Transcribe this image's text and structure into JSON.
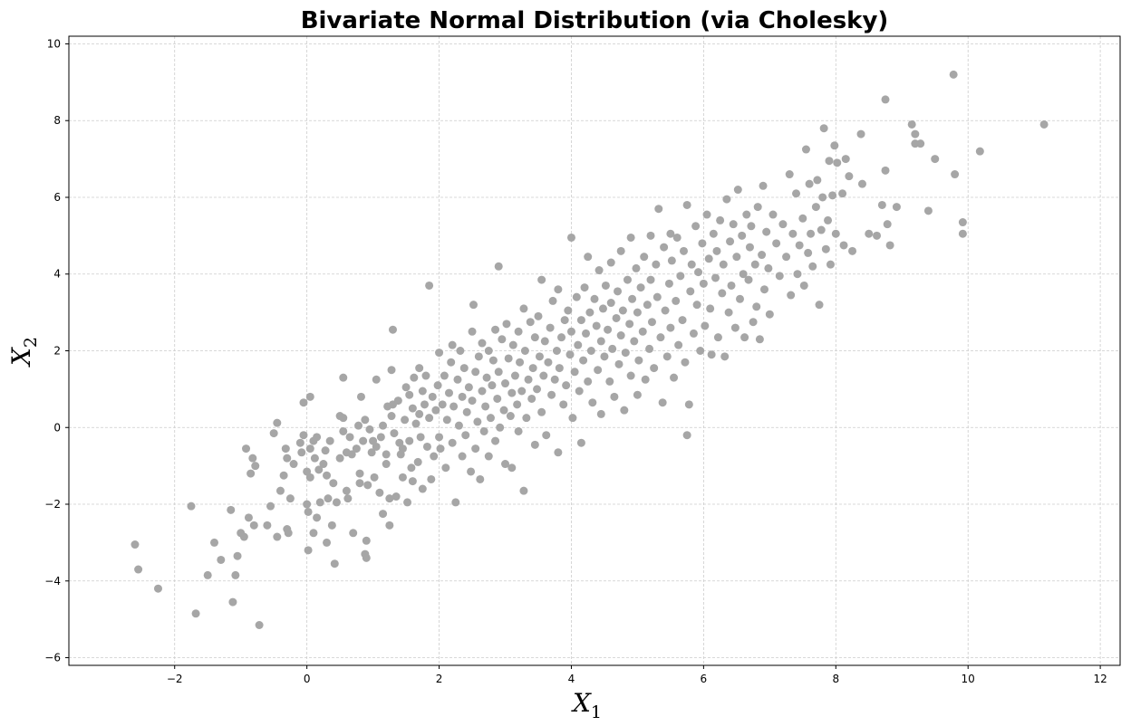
{
  "chart_data": {
    "type": "scatter",
    "title": "Bivariate Normal Distribution (via Cholesky)",
    "xlabel": {
      "base": "X",
      "sub": "1"
    },
    "ylabel": {
      "base": "X",
      "sub": "2"
    },
    "xlim": [
      -3.6,
      12.3
    ],
    "ylim": [
      -6.2,
      10.2
    ],
    "xticks": [
      -2,
      0,
      2,
      4,
      6,
      8,
      10,
      12
    ],
    "yticks": [
      -6,
      -4,
      -2,
      0,
      2,
      4,
      6,
      8,
      10
    ],
    "grid": true,
    "marker_color": "#a6a6a6",
    "points": [
      [
        -2.6,
        -3.05
      ],
      [
        -2.55,
        -3.7
      ],
      [
        -2.25,
        -4.2
      ],
      [
        -1.75,
        -2.05
      ],
      [
        -1.68,
        -4.85
      ],
      [
        -1.5,
        -3.85
      ],
      [
        -1.4,
        -3.0
      ],
      [
        -1.3,
        -3.45
      ],
      [
        -1.15,
        -2.15
      ],
      [
        -1.12,
        -4.55
      ],
      [
        -1.08,
        -3.85
      ],
      [
        -1.05,
        -3.35
      ],
      [
        -1.0,
        -2.75
      ],
      [
        -0.95,
        -2.85
      ],
      [
        -0.92,
        -0.55
      ],
      [
        -0.88,
        -2.35
      ],
      [
        -0.85,
        -1.2
      ],
      [
        -0.82,
        -0.8
      ],
      [
        -0.78,
        -1.0
      ],
      [
        -0.8,
        -2.55
      ],
      [
        -0.72,
        -5.15
      ],
      [
        -0.6,
        -2.55
      ],
      [
        -0.55,
        -2.05
      ],
      [
        -0.5,
        -0.15
      ],
      [
        -0.45,
        0.12
      ],
      [
        -0.45,
        -2.85
      ],
      [
        -0.4,
        -1.65
      ],
      [
        -0.35,
        -1.25
      ],
      [
        -0.32,
        -0.55
      ],
      [
        -0.3,
        -0.8
      ],
      [
        -0.3,
        -2.65
      ],
      [
        -0.28,
        -2.75
      ],
      [
        -0.25,
        -1.85
      ],
      [
        -0.2,
        -0.95
      ],
      [
        -0.1,
        -0.4
      ],
      [
        -0.08,
        -0.65
      ],
      [
        -0.05,
        0.65
      ],
      [
        -0.05,
        -0.2
      ],
      [
        0.0,
        -1.15
      ],
      [
        0.0,
        -2.0
      ],
      [
        0.02,
        -2.2
      ],
      [
        0.05,
        0.8
      ],
      [
        0.05,
        -0.55
      ],
      [
        0.05,
        -1.3
      ],
      [
        0.02,
        -3.2
      ],
      [
        0.1,
        -0.35
      ],
      [
        0.12,
        -0.8
      ],
      [
        0.1,
        -2.75
      ],
      [
        0.15,
        -0.25
      ],
      [
        0.18,
        -1.1
      ],
      [
        0.2,
        -1.95
      ],
      [
        0.15,
        -2.35
      ],
      [
        0.25,
        -0.95
      ],
      [
        0.28,
        -0.6
      ],
      [
        0.3,
        -1.25
      ],
      [
        0.3,
        -3.0
      ],
      [
        0.32,
        -1.85
      ],
      [
        0.35,
        -0.35
      ],
      [
        0.38,
        -2.55
      ],
      [
        0.4,
        -1.45
      ],
      [
        0.42,
        -3.55
      ],
      [
        0.45,
        -1.95
      ],
      [
        0.5,
        -0.8
      ],
      [
        0.5,
        0.3
      ],
      [
        0.55,
        0.25
      ],
      [
        0.55,
        -0.1
      ],
      [
        0.55,
        1.3
      ],
      [
        0.6,
        -0.65
      ],
      [
        0.6,
        -1.65
      ],
      [
        0.62,
        -1.85
      ],
      [
        0.65,
        -0.25
      ],
      [
        0.68,
        -0.7
      ],
      [
        0.7,
        -2.75
      ],
      [
        0.75,
        -0.55
      ],
      [
        0.78,
        0.05
      ],
      [
        0.8,
        -1.2
      ],
      [
        0.8,
        -1.45
      ],
      [
        0.82,
        0.8
      ],
      [
        0.85,
        -0.35
      ],
      [
        0.88,
        0.2
      ],
      [
        0.88,
        -3.3
      ],
      [
        0.9,
        -3.4
      ],
      [
        0.9,
        -2.95
      ],
      [
        0.92,
        -1.5
      ],
      [
        0.95,
        -0.05
      ],
      [
        0.98,
        -0.65
      ],
      [
        1.0,
        -0.35
      ],
      [
        1.02,
        -1.3
      ],
      [
        1.05,
        -0.5
      ],
      [
        1.05,
        1.25
      ],
      [
        1.1,
        -1.7
      ],
      [
        1.12,
        -0.25
      ],
      [
        1.15,
        -2.25
      ],
      [
        1.15,
        0.05
      ],
      [
        1.2,
        -0.7
      ],
      [
        1.2,
        -0.95
      ],
      [
        1.22,
        0.55
      ],
      [
        1.25,
        -1.85
      ],
      [
        1.25,
        -2.55
      ],
      [
        1.28,
        0.3
      ],
      [
        1.28,
        1.5
      ],
      [
        1.3,
        0.6
      ],
      [
        1.3,
        2.55
      ],
      [
        1.32,
        -0.15
      ],
      [
        1.35,
        -1.8
      ],
      [
        1.38,
        0.7
      ],
      [
        1.4,
        -0.4
      ],
      [
        1.42,
        -0.7
      ],
      [
        1.45,
        -0.55
      ],
      [
        1.45,
        -1.3
      ],
      [
        1.48,
        0.2
      ],
      [
        1.5,
        1.05
      ],
      [
        1.52,
        -1.95
      ],
      [
        1.55,
        -0.35
      ],
      [
        1.55,
        0.85
      ],
      [
        1.58,
        -1.05
      ],
      [
        1.6,
        0.5
      ],
      [
        1.6,
        -1.4
      ],
      [
        1.62,
        1.3
      ],
      [
        1.65,
        0.1
      ],
      [
        1.68,
        -0.9
      ],
      [
        1.7,
        0.35
      ],
      [
        1.7,
        1.55
      ],
      [
        1.72,
        -0.25
      ],
      [
        1.75,
        0.95
      ],
      [
        1.75,
        -1.6
      ],
      [
        1.78,
        0.6
      ],
      [
        1.8,
        1.35
      ],
      [
        1.82,
        -0.5
      ],
      [
        1.85,
        0.25
      ],
      [
        1.85,
        3.7
      ],
      [
        1.88,
        -1.35
      ],
      [
        1.9,
        0.8
      ],
      [
        1.92,
        -0.75
      ],
      [
        1.95,
        0.45
      ],
      [
        1.98,
        1.1
      ],
      [
        2.0,
        -0.25
      ],
      [
        2.0,
        1.95
      ],
      [
        2.02,
        -0.55
      ],
      [
        2.05,
        0.6
      ],
      [
        2.08,
        1.35
      ],
      [
        2.1,
        -1.05
      ],
      [
        2.12,
        0.2
      ],
      [
        2.15,
        0.9
      ],
      [
        2.18,
        1.7
      ],
      [
        2.2,
        -0.4
      ],
      [
        2.2,
        2.15
      ],
      [
        2.22,
        0.55
      ],
      [
        2.25,
        -1.95
      ],
      [
        2.28,
        1.25
      ],
      [
        2.3,
        0.05
      ],
      [
        2.32,
        2.0
      ],
      [
        2.35,
        -0.75
      ],
      [
        2.35,
        0.8
      ],
      [
        2.38,
        1.55
      ],
      [
        2.4,
        -0.2
      ],
      [
        2.42,
        0.4
      ],
      [
        2.45,
        1.05
      ],
      [
        2.48,
        -1.15
      ],
      [
        2.5,
        2.5
      ],
      [
        2.5,
        0.7
      ],
      [
        2.52,
        3.2
      ],
      [
        2.55,
        -0.55
      ],
      [
        2.55,
        1.45
      ],
      [
        2.58,
        0.15
      ],
      [
        2.6,
        1.85
      ],
      [
        2.62,
        -1.35
      ],
      [
        2.65,
        0.95
      ],
      [
        2.65,
        2.2
      ],
      [
        2.68,
        -0.1
      ],
      [
        2.7,
        0.55
      ],
      [
        2.72,
        1.3
      ],
      [
        2.75,
        -0.75
      ],
      [
        2.75,
        2.0
      ],
      [
        2.78,
        0.25
      ],
      [
        2.8,
        1.1
      ],
      [
        2.82,
        1.75
      ],
      [
        2.85,
        -0.35
      ],
      [
        2.85,
        2.55
      ],
      [
        2.88,
        0.75
      ],
      [
        2.9,
        4.2
      ],
      [
        2.9,
        1.45
      ],
      [
        2.92,
        0.0
      ],
      [
        2.95,
        2.3
      ],
      [
        2.98,
        0.45
      ],
      [
        3.0,
        1.15
      ],
      [
        3.0,
        -0.95
      ],
      [
        3.02,
        2.7
      ],
      [
        3.05,
        1.8
      ],
      [
        3.08,
        0.3
      ],
      [
        3.1,
        0.9
      ],
      [
        3.1,
        -1.05
      ],
      [
        3.12,
        2.15
      ],
      [
        3.15,
        1.35
      ],
      [
        3.18,
        0.6
      ],
      [
        3.2,
        2.5
      ],
      [
        3.2,
        -0.1
      ],
      [
        3.22,
        1.7
      ],
      [
        3.25,
        0.95
      ],
      [
        3.28,
        3.1
      ],
      [
        3.28,
        -1.65
      ],
      [
        3.3,
        2.0
      ],
      [
        3.32,
        0.25
      ],
      [
        3.35,
        1.25
      ],
      [
        3.38,
        2.75
      ],
      [
        3.4,
        0.75
      ],
      [
        3.42,
        1.55
      ],
      [
        3.45,
        2.35
      ],
      [
        3.45,
        -0.45
      ],
      [
        3.48,
        1.0
      ],
      [
        3.5,
        2.9
      ],
      [
        3.52,
        1.85
      ],
      [
        3.55,
        0.4
      ],
      [
        3.55,
        3.85
      ],
      [
        3.58,
        1.35
      ],
      [
        3.6,
        2.25
      ],
      [
        3.62,
        -0.2
      ],
      [
        3.65,
        1.7
      ],
      [
        3.68,
        2.6
      ],
      [
        3.7,
        0.85
      ],
      [
        3.72,
        3.3
      ],
      [
        3.75,
        1.25
      ],
      [
        3.78,
        2.0
      ],
      [
        3.8,
        -0.65
      ],
      [
        3.8,
        3.6
      ],
      [
        3.82,
        1.55
      ],
      [
        3.85,
        2.35
      ],
      [
        3.88,
        0.6
      ],
      [
        3.9,
        2.8
      ],
      [
        3.92,
        1.1
      ],
      [
        3.95,
        3.05
      ],
      [
        3.98,
        1.9
      ],
      [
        4.0,
        4.95
      ],
      [
        4.0,
        2.5
      ],
      [
        4.02,
        0.25
      ],
      [
        4.05,
        1.45
      ],
      [
        4.08,
        3.4
      ],
      [
        4.1,
        2.15
      ],
      [
        4.12,
        0.95
      ],
      [
        4.15,
        2.8
      ],
      [
        4.15,
        -0.4
      ],
      [
        4.18,
        1.75
      ],
      [
        4.2,
        3.65
      ],
      [
        4.22,
        2.45
      ],
      [
        4.25,
        4.45
      ],
      [
        4.25,
        1.2
      ],
      [
        4.28,
        3.0
      ],
      [
        4.3,
        2.0
      ],
      [
        4.32,
        0.65
      ],
      [
        4.35,
        3.35
      ],
      [
        4.38,
        2.65
      ],
      [
        4.4,
        1.5
      ],
      [
        4.42,
        4.1
      ],
      [
        4.45,
        2.25
      ],
      [
        4.45,
        0.35
      ],
      [
        4.48,
        3.1
      ],
      [
        4.5,
        1.85
      ],
      [
        4.52,
        3.7
      ],
      [
        4.55,
        2.55
      ],
      [
        4.58,
        1.2
      ],
      [
        4.6,
        4.3
      ],
      [
        4.6,
        3.25
      ],
      [
        4.62,
        2.05
      ],
      [
        4.65,
        0.8
      ],
      [
        4.68,
        2.85
      ],
      [
        4.7,
        3.55
      ],
      [
        4.72,
        1.65
      ],
      [
        4.75,
        4.6
      ],
      [
        4.75,
        2.4
      ],
      [
        4.78,
        3.05
      ],
      [
        4.8,
        0.45
      ],
      [
        4.82,
        1.95
      ],
      [
        4.85,
        3.85
      ],
      [
        4.88,
        2.7
      ],
      [
        4.9,
        4.95
      ],
      [
        4.9,
        1.35
      ],
      [
        4.92,
        3.35
      ],
      [
        4.95,
        2.25
      ],
      [
        4.98,
        4.15
      ],
      [
        5.0,
        3.0
      ],
      [
        5.0,
        0.85
      ],
      [
        5.02,
        1.75
      ],
      [
        5.05,
        3.65
      ],
      [
        5.08,
        2.5
      ],
      [
        5.1,
        4.45
      ],
      [
        5.12,
        1.25
      ],
      [
        5.15,
        3.2
      ],
      [
        5.18,
        2.05
      ],
      [
        5.2,
        5.0
      ],
      [
        5.2,
        3.85
      ],
      [
        5.22,
        2.75
      ],
      [
        5.25,
        1.55
      ],
      [
        5.28,
        4.25
      ],
      [
        5.3,
        3.4
      ],
      [
        5.32,
        5.7
      ],
      [
        5.35,
        2.35
      ],
      [
        5.38,
        0.65
      ],
      [
        5.4,
        4.7
      ],
      [
        5.42,
        3.05
      ],
      [
        5.45,
        1.85
      ],
      [
        5.48,
        3.75
      ],
      [
        5.5,
        5.05
      ],
      [
        5.5,
        2.6
      ],
      [
        5.52,
        4.35
      ],
      [
        5.55,
        1.3
      ],
      [
        5.58,
        3.3
      ],
      [
        5.6,
        4.95
      ],
      [
        5.62,
        2.15
      ],
      [
        5.65,
        3.95
      ],
      [
        5.68,
        2.8
      ],
      [
        5.7,
        4.6
      ],
      [
        5.72,
        1.7
      ],
      [
        5.75,
        5.8
      ],
      [
        5.75,
        -0.2
      ],
      [
        5.78,
        0.6
      ],
      [
        5.8,
        3.55
      ],
      [
        5.82,
        4.25
      ],
      [
        5.85,
        2.45
      ],
      [
        5.88,
        5.25
      ],
      [
        5.9,
        3.2
      ],
      [
        5.92,
        4.05
      ],
      [
        5.95,
        2.0
      ],
      [
        5.98,
        4.8
      ],
      [
        6.0,
        3.75
      ],
      [
        6.02,
        2.65
      ],
      [
        6.05,
        5.55
      ],
      [
        6.08,
        4.4
      ],
      [
        6.1,
        3.1
      ],
      [
        6.12,
        1.9
      ],
      [
        6.15,
        5.05
      ],
      [
        6.18,
        3.9
      ],
      [
        6.2,
        4.6
      ],
      [
        6.22,
        2.35
      ],
      [
        6.25,
        5.4
      ],
      [
        6.28,
        3.5
      ],
      [
        6.3,
        4.25
      ],
      [
        6.32,
        1.85
      ],
      [
        6.35,
        5.95
      ],
      [
        6.38,
        3.0
      ],
      [
        6.4,
        4.85
      ],
      [
        6.42,
        3.7
      ],
      [
        6.45,
        5.3
      ],
      [
        6.48,
        2.6
      ],
      [
        6.5,
        4.45
      ],
      [
        6.52,
        6.2
      ],
      [
        6.55,
        3.35
      ],
      [
        6.58,
        5.0
      ],
      [
        6.6,
        4.0
      ],
      [
        6.62,
        2.35
      ],
      [
        6.65,
        5.55
      ],
      [
        6.68,
        3.85
      ],
      [
        6.7,
        4.7
      ],
      [
        6.72,
        5.25
      ],
      [
        6.75,
        2.75
      ],
      [
        6.78,
        4.25
      ],
      [
        6.8,
        3.15
      ],
      [
        6.82,
        5.75
      ],
      [
        6.85,
        2.3
      ],
      [
        6.88,
        4.5
      ],
      [
        6.9,
        6.3
      ],
      [
        6.92,
        3.6
      ],
      [
        6.95,
        5.1
      ],
      [
        6.98,
        4.15
      ],
      [
        7.0,
        2.95
      ],
      [
        7.05,
        5.55
      ],
      [
        7.1,
        4.8
      ],
      [
        7.15,
        3.95
      ],
      [
        7.2,
        5.3
      ],
      [
        7.25,
        4.45
      ],
      [
        7.3,
        6.6
      ],
      [
        7.32,
        3.45
      ],
      [
        7.35,
        5.05
      ],
      [
        7.4,
        6.1
      ],
      [
        7.42,
        4.0
      ],
      [
        7.45,
        4.75
      ],
      [
        7.5,
        5.45
      ],
      [
        7.52,
        3.7
      ],
      [
        7.55,
        7.25
      ],
      [
        7.58,
        4.55
      ],
      [
        7.6,
        6.35
      ],
      [
        7.62,
        5.05
      ],
      [
        7.65,
        4.2
      ],
      [
        7.7,
        5.75
      ],
      [
        7.72,
        6.45
      ],
      [
        7.75,
        3.2
      ],
      [
        7.78,
        5.15
      ],
      [
        7.8,
        6.0
      ],
      [
        7.82,
        7.8
      ],
      [
        7.85,
        4.65
      ],
      [
        7.88,
        5.4
      ],
      [
        7.9,
        6.95
      ],
      [
        7.92,
        4.25
      ],
      [
        7.95,
        6.05
      ],
      [
        7.98,
        7.35
      ],
      [
        8.0,
        5.05
      ],
      [
        8.02,
        6.9
      ],
      [
        8.1,
        6.1
      ],
      [
        8.12,
        4.75
      ],
      [
        8.15,
        7.0
      ],
      [
        8.2,
        6.55
      ],
      [
        8.25,
        4.6
      ],
      [
        8.38,
        7.65
      ],
      [
        8.4,
        6.35
      ],
      [
        8.5,
        5.05
      ],
      [
        8.62,
        5.0
      ],
      [
        8.7,
        5.8
      ],
      [
        8.75,
        8.55
      ],
      [
        8.75,
        6.7
      ],
      [
        8.78,
        5.3
      ],
      [
        8.82,
        4.75
      ],
      [
        8.92,
        5.75
      ],
      [
        9.15,
        7.9
      ],
      [
        9.2,
        7.4
      ],
      [
        9.2,
        7.65
      ],
      [
        9.28,
        7.4
      ],
      [
        9.4,
        5.65
      ],
      [
        9.5,
        7.0
      ],
      [
        9.78,
        9.2
      ],
      [
        9.8,
        6.6
      ],
      [
        9.92,
        5.35
      ],
      [
        9.92,
        5.05
      ],
      [
        10.18,
        7.2
      ],
      [
        11.15,
        7.9
      ]
    ]
  }
}
